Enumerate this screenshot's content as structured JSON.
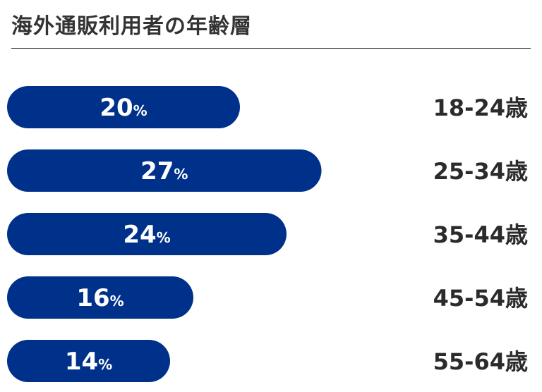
{
  "chart_data": {
    "type": "bar",
    "orientation": "horizontal",
    "title": "海外通販利用者の年齢層",
    "categories": [
      "18-24歳",
      "25-34歳",
      "35-44歳",
      "45-54歳",
      "55-64歳"
    ],
    "values": [
      20,
      27,
      24,
      16,
      14
    ],
    "unit": "%",
    "grid": false,
    "legend": "none"
  },
  "colors": {
    "bar": "#00318a",
    "value_text": "#ffffff",
    "label_text": "#2b2b2b",
    "title_text": "#333333"
  }
}
